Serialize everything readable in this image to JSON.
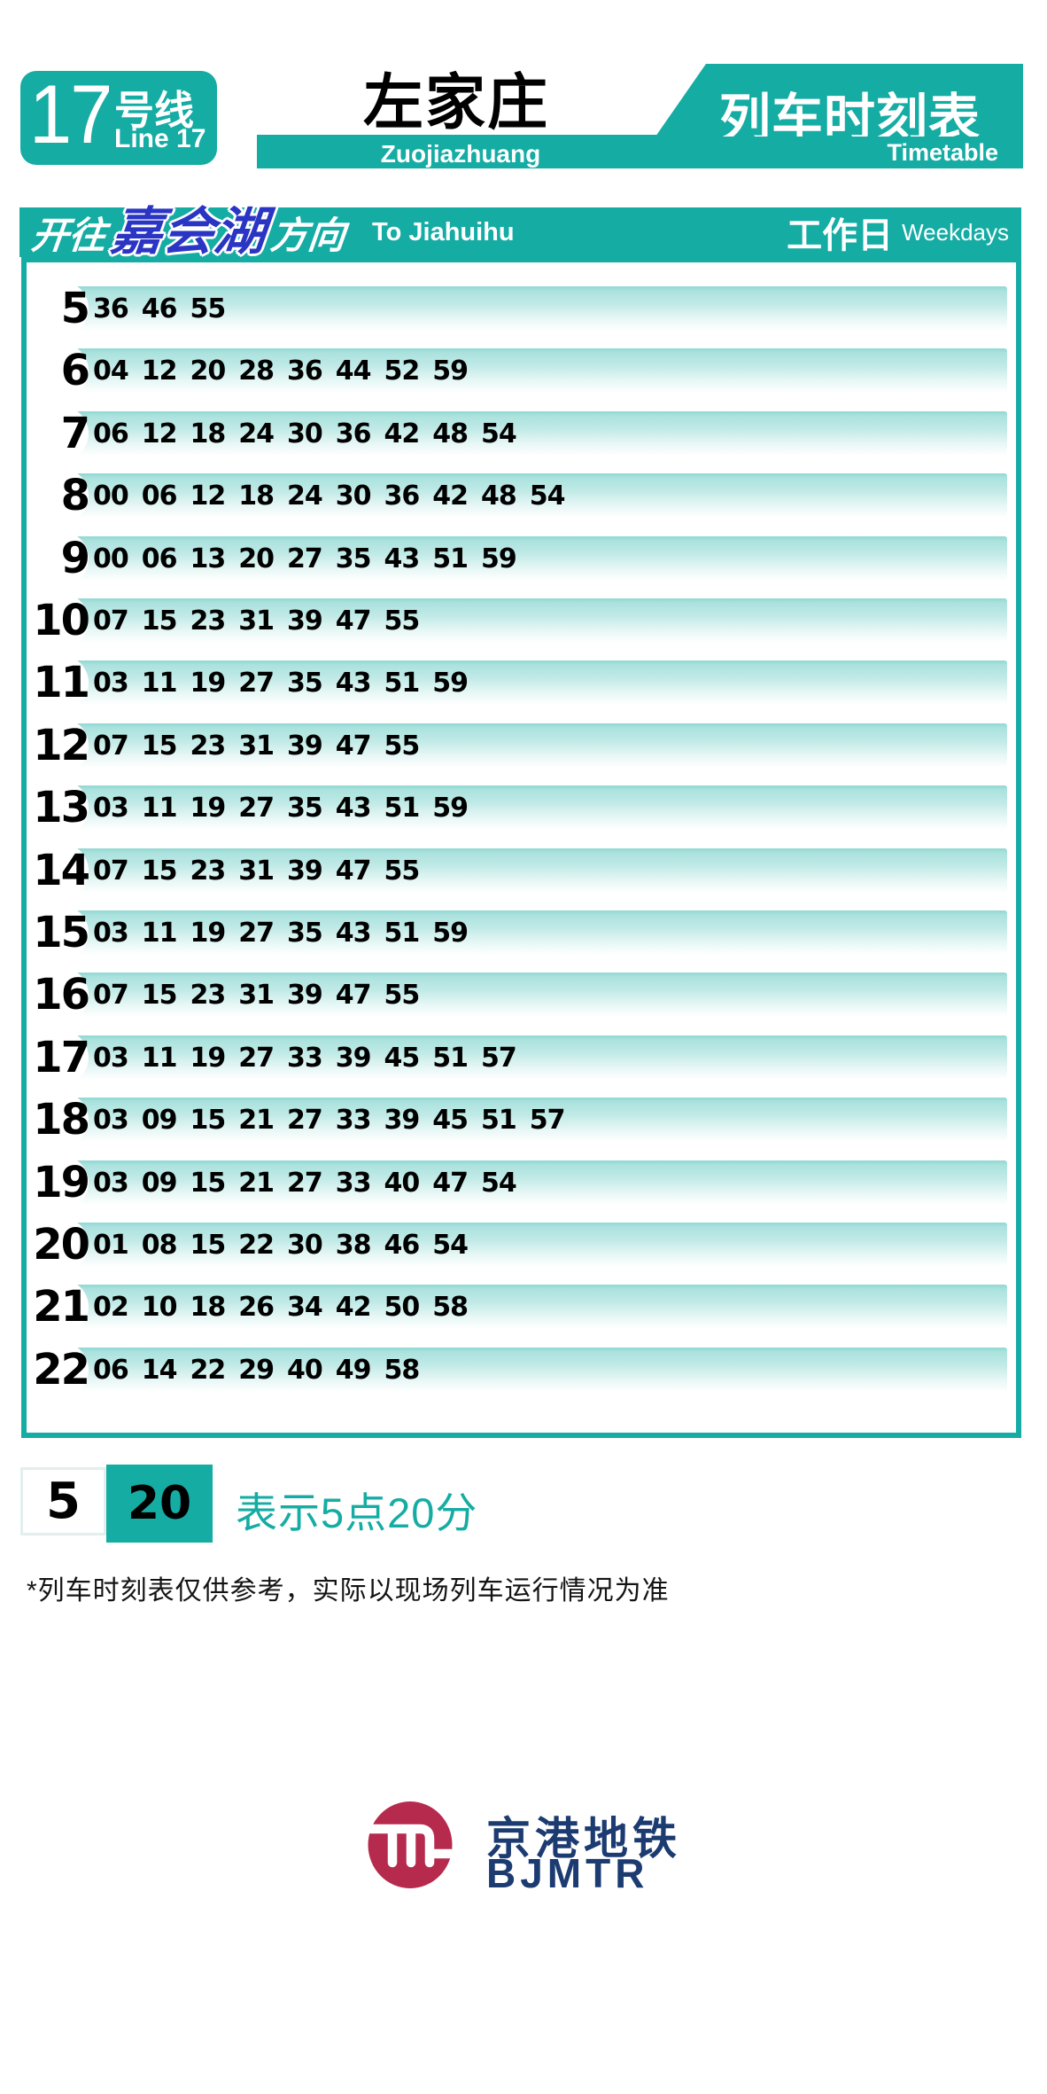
{
  "colors": {
    "teal": "#15ACA4",
    "terminus_blue": "#2B35C4",
    "logo_red": "#B62B4D",
    "logo_navy": "#1C3B70"
  },
  "line_badge": {
    "number": "17",
    "suffix_cn": "号线",
    "en": "Line 17"
  },
  "station": {
    "cn": "左家庄",
    "en": "Zuojiazhuang"
  },
  "title": {
    "cn": "列车时刻表",
    "en": "Timetable"
  },
  "direction": {
    "prefix_cn": "开往",
    "terminus_cn": "嘉会湖",
    "suffix_cn": "方向",
    "en": "To Jiahuihu",
    "day_cn": "工作日",
    "day_en": "Weekdays"
  },
  "timetable": {
    "rows": [
      {
        "hour": "5",
        "minutes": [
          "36",
          "46",
          "55"
        ]
      },
      {
        "hour": "6",
        "minutes": [
          "04",
          "12",
          "20",
          "28",
          "36",
          "44",
          "52",
          "59"
        ]
      },
      {
        "hour": "7",
        "minutes": [
          "06",
          "12",
          "18",
          "24",
          "30",
          "36",
          "42",
          "48",
          "54"
        ]
      },
      {
        "hour": "8",
        "minutes": [
          "00",
          "06",
          "12",
          "18",
          "24",
          "30",
          "36",
          "42",
          "48",
          "54"
        ]
      },
      {
        "hour": "9",
        "minutes": [
          "00",
          "06",
          "13",
          "20",
          "27",
          "35",
          "43",
          "51",
          "59"
        ]
      },
      {
        "hour": "10",
        "minutes": [
          "07",
          "15",
          "23",
          "31",
          "39",
          "47",
          "55"
        ]
      },
      {
        "hour": "11",
        "minutes": [
          "03",
          "11",
          "19",
          "27",
          "35",
          "43",
          "51",
          "59"
        ]
      },
      {
        "hour": "12",
        "minutes": [
          "07",
          "15",
          "23",
          "31",
          "39",
          "47",
          "55"
        ]
      },
      {
        "hour": "13",
        "minutes": [
          "03",
          "11",
          "19",
          "27",
          "35",
          "43",
          "51",
          "59"
        ]
      },
      {
        "hour": "14",
        "minutes": [
          "07",
          "15",
          "23",
          "31",
          "39",
          "47",
          "55"
        ]
      },
      {
        "hour": "15",
        "minutes": [
          "03",
          "11",
          "19",
          "27",
          "35",
          "43",
          "51",
          "59"
        ]
      },
      {
        "hour": "16",
        "minutes": [
          "07",
          "15",
          "23",
          "31",
          "39",
          "47",
          "55"
        ]
      },
      {
        "hour": "17",
        "minutes": [
          "03",
          "11",
          "19",
          "27",
          "33",
          "39",
          "45",
          "51",
          "57"
        ]
      },
      {
        "hour": "18",
        "minutes": [
          "03",
          "09",
          "15",
          "21",
          "27",
          "33",
          "39",
          "45",
          "51",
          "57"
        ]
      },
      {
        "hour": "19",
        "minutes": [
          "03",
          "09",
          "15",
          "21",
          "27",
          "33",
          "40",
          "47",
          "54"
        ]
      },
      {
        "hour": "20",
        "minutes": [
          "01",
          "08",
          "15",
          "22",
          "30",
          "38",
          "46",
          "54"
        ]
      },
      {
        "hour": "21",
        "minutes": [
          "02",
          "10",
          "18",
          "26",
          "34",
          "42",
          "50",
          "58"
        ]
      },
      {
        "hour": "22",
        "minutes": [
          "06",
          "14",
          "22",
          "29",
          "40",
          "49",
          "58"
        ]
      }
    ]
  },
  "legend": {
    "hour": "5",
    "minute": "20",
    "caption": "表示5点20分"
  },
  "footnote": "*列车时刻表仅供参考，实际以现场列车运行情况为准",
  "logo": {
    "cn": "京港地铁",
    "en": "BJMTR"
  }
}
